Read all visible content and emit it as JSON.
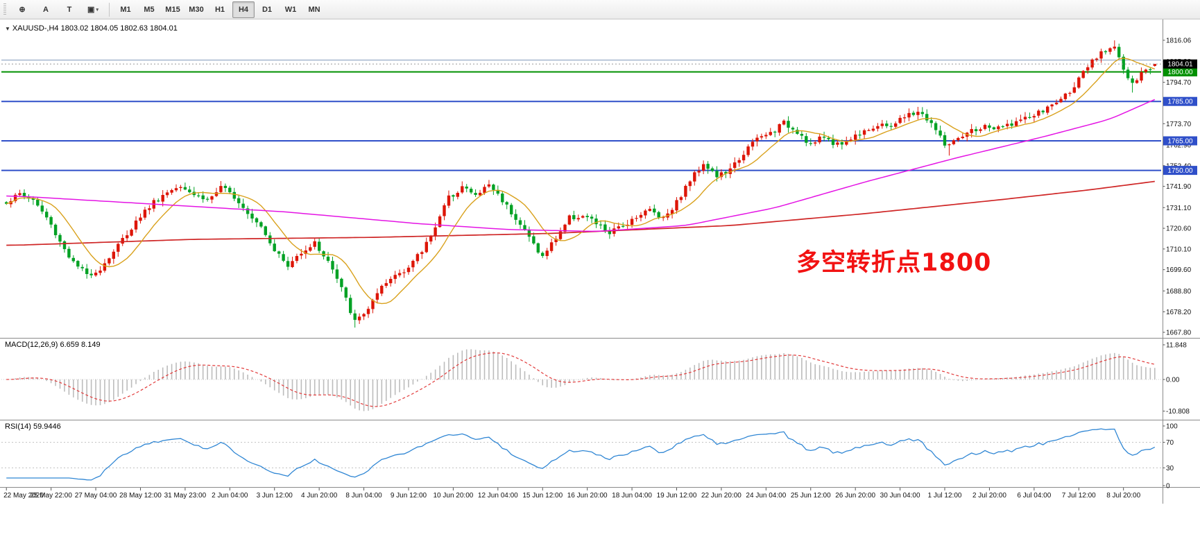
{
  "toolbar": {
    "tools": [
      {
        "name": "cursor-tool",
        "glyph": "⊕",
        "caret": false
      },
      {
        "name": "text-a-tool",
        "glyph": "A",
        "caret": false
      },
      {
        "name": "text-tool",
        "glyph": "T",
        "caret": false
      },
      {
        "name": "objects-tool",
        "glyph": "▣",
        "caret": true
      }
    ],
    "timeframes": [
      "M1",
      "M5",
      "M15",
      "M30",
      "H1",
      "H4",
      "D1",
      "W1",
      "MN"
    ],
    "active_timeframe": "H4"
  },
  "chart": {
    "symbol_title": "XAUUSD-,H4  1803.02 1804.05 1802.63 1804.01",
    "annotation": {
      "text": "多空转折点1800",
      "color": "#f21212"
    },
    "price_ticks": [
      1816.06,
      1805.38,
      1794.7,
      1784.2,
      1773.7,
      1762.9,
      1752.4,
      1741.9,
      1731.1,
      1720.6,
      1710.1,
      1699.6,
      1688.8,
      1678.2,
      1667.8
    ],
    "levels": [
      {
        "value": 1806.0,
        "color": "#7e97b9",
        "thickness": 1,
        "labeled": false
      },
      {
        "value": 1800.0,
        "color": "#009000",
        "thickness": 2,
        "labeled": true
      },
      {
        "value": 1785.0,
        "color": "#2f4fc9",
        "thickness": 2,
        "labeled": true
      },
      {
        "value": 1765.0,
        "color": "#2f4fc9",
        "thickness": 2,
        "labeled": true
      },
      {
        "value": 1750.0,
        "color": "#2f4fc9",
        "thickness": 2,
        "labeled": true
      }
    ],
    "current_price": {
      "value": 1804.01,
      "label": "1804.01",
      "box_color": "#000000"
    }
  },
  "macd": {
    "title": "MACD(12,26,9) 6.659 8.149",
    "axis_ticks": [
      11.848,
      0,
      -10.808
    ],
    "axis_tick_labels": [
      "11.848",
      "0.00",
      "-10.808"
    ],
    "hist_color": "#bcbcbc",
    "signal_color": "#e23b3b"
  },
  "rsi": {
    "title": "RSI(14) 59.9446",
    "axis_ticks": [
      100,
      70,
      30,
      0
    ],
    "axis_tick_labels": [
      "100",
      "70",
      "30",
      "0"
    ],
    "line_color": "#2f86d4",
    "level_lines": [
      70,
      30
    ]
  },
  "time_axis": {
    "bar_step": 10,
    "labels": [
      "22 May 2020",
      "25 May 22:00",
      "27 May 04:00",
      "28 May 12:00",
      "31 May 23:00",
      "2 Jun 04:00",
      "3 Jun 12:00",
      "4 Jun 20:00",
      "8 Jun 04:00",
      "9 Jun 12:00",
      "10 Jun 20:00",
      "12 Jun 04:00",
      "15 Jun 12:00",
      "16 Jun 20:00",
      "18 Jun 04:00",
      "19 Jun 12:00",
      "22 Jun 20:00",
      "24 Jun 04:00",
      "25 Jun 12:00",
      "26 Jun 20:00",
      "30 Jun 04:00",
      "1 Jul 12:00",
      "2 Jul 20:00",
      "6 Jul 04:00",
      "7 Jul 12:00",
      "8 Jul 20:00"
    ]
  },
  "chart_data": {
    "type": "candlestick",
    "symbol": "XAUUSD",
    "timeframe": "H4",
    "bars": 258,
    "last_bar": {
      "open": 1803.02,
      "high": 1804.05,
      "low": 1802.63,
      "close": 1804.01
    },
    "up_color": "#dd1507",
    "down_color": "#00a124",
    "price_axis_range": [
      1663.5,
      1824.9
    ],
    "key_levels": [
      1750.0,
      1765.0,
      1785.0,
      1800.0,
      1806.0
    ],
    "close_anchors": [
      [
        0,
        1734
      ],
      [
        3,
        1738
      ],
      [
        6,
        1735
      ],
      [
        9,
        1726
      ],
      [
        12,
        1714
      ],
      [
        15,
        1703
      ],
      [
        18,
        1697
      ],
      [
        21,
        1700
      ],
      [
        24,
        1709
      ],
      [
        27,
        1718
      ],
      [
        30,
        1727
      ],
      [
        33,
        1734
      ],
      [
        36,
        1739
      ],
      [
        39,
        1743
      ],
      [
        42,
        1738
      ],
      [
        45,
        1735
      ],
      [
        48,
        1741
      ],
      [
        51,
        1737
      ],
      [
        54,
        1729
      ],
      [
        57,
        1722
      ],
      [
        60,
        1710
      ],
      [
        63,
        1701
      ],
      [
        66,
        1709
      ],
      [
        69,
        1713
      ],
      [
        72,
        1704
      ],
      [
        75,
        1690
      ],
      [
        78,
        1673
      ],
      [
        81,
        1680
      ],
      [
        84,
        1690
      ],
      [
        87,
        1697
      ],
      [
        90,
        1701
      ],
      [
        93,
        1709
      ],
      [
        96,
        1722
      ],
      [
        99,
        1736
      ],
      [
        102,
        1742
      ],
      [
        105,
        1737
      ],
      [
        108,
        1743
      ],
      [
        111,
        1735
      ],
      [
        114,
        1726
      ],
      [
        117,
        1716
      ],
      [
        120,
        1706
      ],
      [
        123,
        1716
      ],
      [
        126,
        1726
      ],
      [
        129,
        1727
      ],
      [
        132,
        1723
      ],
      [
        135,
        1718
      ],
      [
        138,
        1722
      ],
      [
        141,
        1727
      ],
      [
        144,
        1730
      ],
      [
        147,
        1726
      ],
      [
        150,
        1734
      ],
      [
        153,
        1745
      ],
      [
        156,
        1754
      ],
      [
        159,
        1747
      ],
      [
        162,
        1750
      ],
      [
        165,
        1759
      ],
      [
        168,
        1766
      ],
      [
        171,
        1769
      ],
      [
        174,
        1774
      ],
      [
        177,
        1770
      ],
      [
        180,
        1763
      ],
      [
        183,
        1767
      ],
      [
        186,
        1763
      ],
      [
        189,
        1766
      ],
      [
        192,
        1771
      ],
      [
        195,
        1772
      ],
      [
        198,
        1773
      ],
      [
        201,
        1777
      ],
      [
        204,
        1780
      ],
      [
        207,
        1774
      ],
      [
        210,
        1763
      ],
      [
        213,
        1765
      ],
      [
        216,
        1770
      ],
      [
        219,
        1772
      ],
      [
        222,
        1771
      ],
      [
        225,
        1774
      ],
      [
        228,
        1776
      ],
      [
        231,
        1779
      ],
      [
        234,
        1783
      ],
      [
        237,
        1788
      ],
      [
        240,
        1796
      ],
      [
        243,
        1805
      ],
      [
        246,
        1811
      ],
      [
        248,
        1814
      ],
      [
        250,
        1801
      ],
      [
        252,
        1793
      ],
      [
        254,
        1799
      ],
      [
        256,
        1802
      ],
      [
        257,
        1804
      ]
    ],
    "pins": {
      "low": [
        [
          78,
          1670.2
        ],
        [
          211,
          1757.5
        ],
        [
          252,
          1789.5
        ]
      ],
      "high": [
        [
          248,
          1816.0
        ]
      ]
    },
    "ma_fast": {
      "type": "SMA",
      "period": 10,
      "color": "#d9a11c"
    },
    "ma_mid": {
      "color": "#e414e4",
      "anchors": [
        [
          0,
          1737
        ],
        [
          30,
          1733
        ],
        [
          60,
          1729
        ],
        [
          90,
          1723
        ],
        [
          110,
          1720
        ],
        [
          130,
          1719
        ],
        [
          150,
          1722
        ],
        [
          170,
          1731
        ],
        [
          190,
          1744
        ],
        [
          210,
          1756
        ],
        [
          230,
          1767
        ],
        [
          245,
          1776
        ],
        [
          257,
          1788
        ]
      ]
    },
    "ma_slow": {
      "color": "#cf2626",
      "anchors": [
        [
          0,
          1712
        ],
        [
          40,
          1715
        ],
        [
          80,
          1716
        ],
        [
          120,
          1718
        ],
        [
          160,
          1722
        ],
        [
          190,
          1728
        ],
        [
          220,
          1735
        ],
        [
          240,
          1740
        ],
        [
          257,
          1745
        ]
      ]
    },
    "indicators": {
      "macd": {
        "fast": 12,
        "slow": 26,
        "signal": 9,
        "main_value": 6.659,
        "signal_value": 8.149,
        "axis_max": 11.848,
        "axis_min": -10.808
      },
      "rsi": {
        "period": 14,
        "value": 59.9446
      }
    },
    "noise_seed": 1337,
    "noise_amp": 1.5
  }
}
